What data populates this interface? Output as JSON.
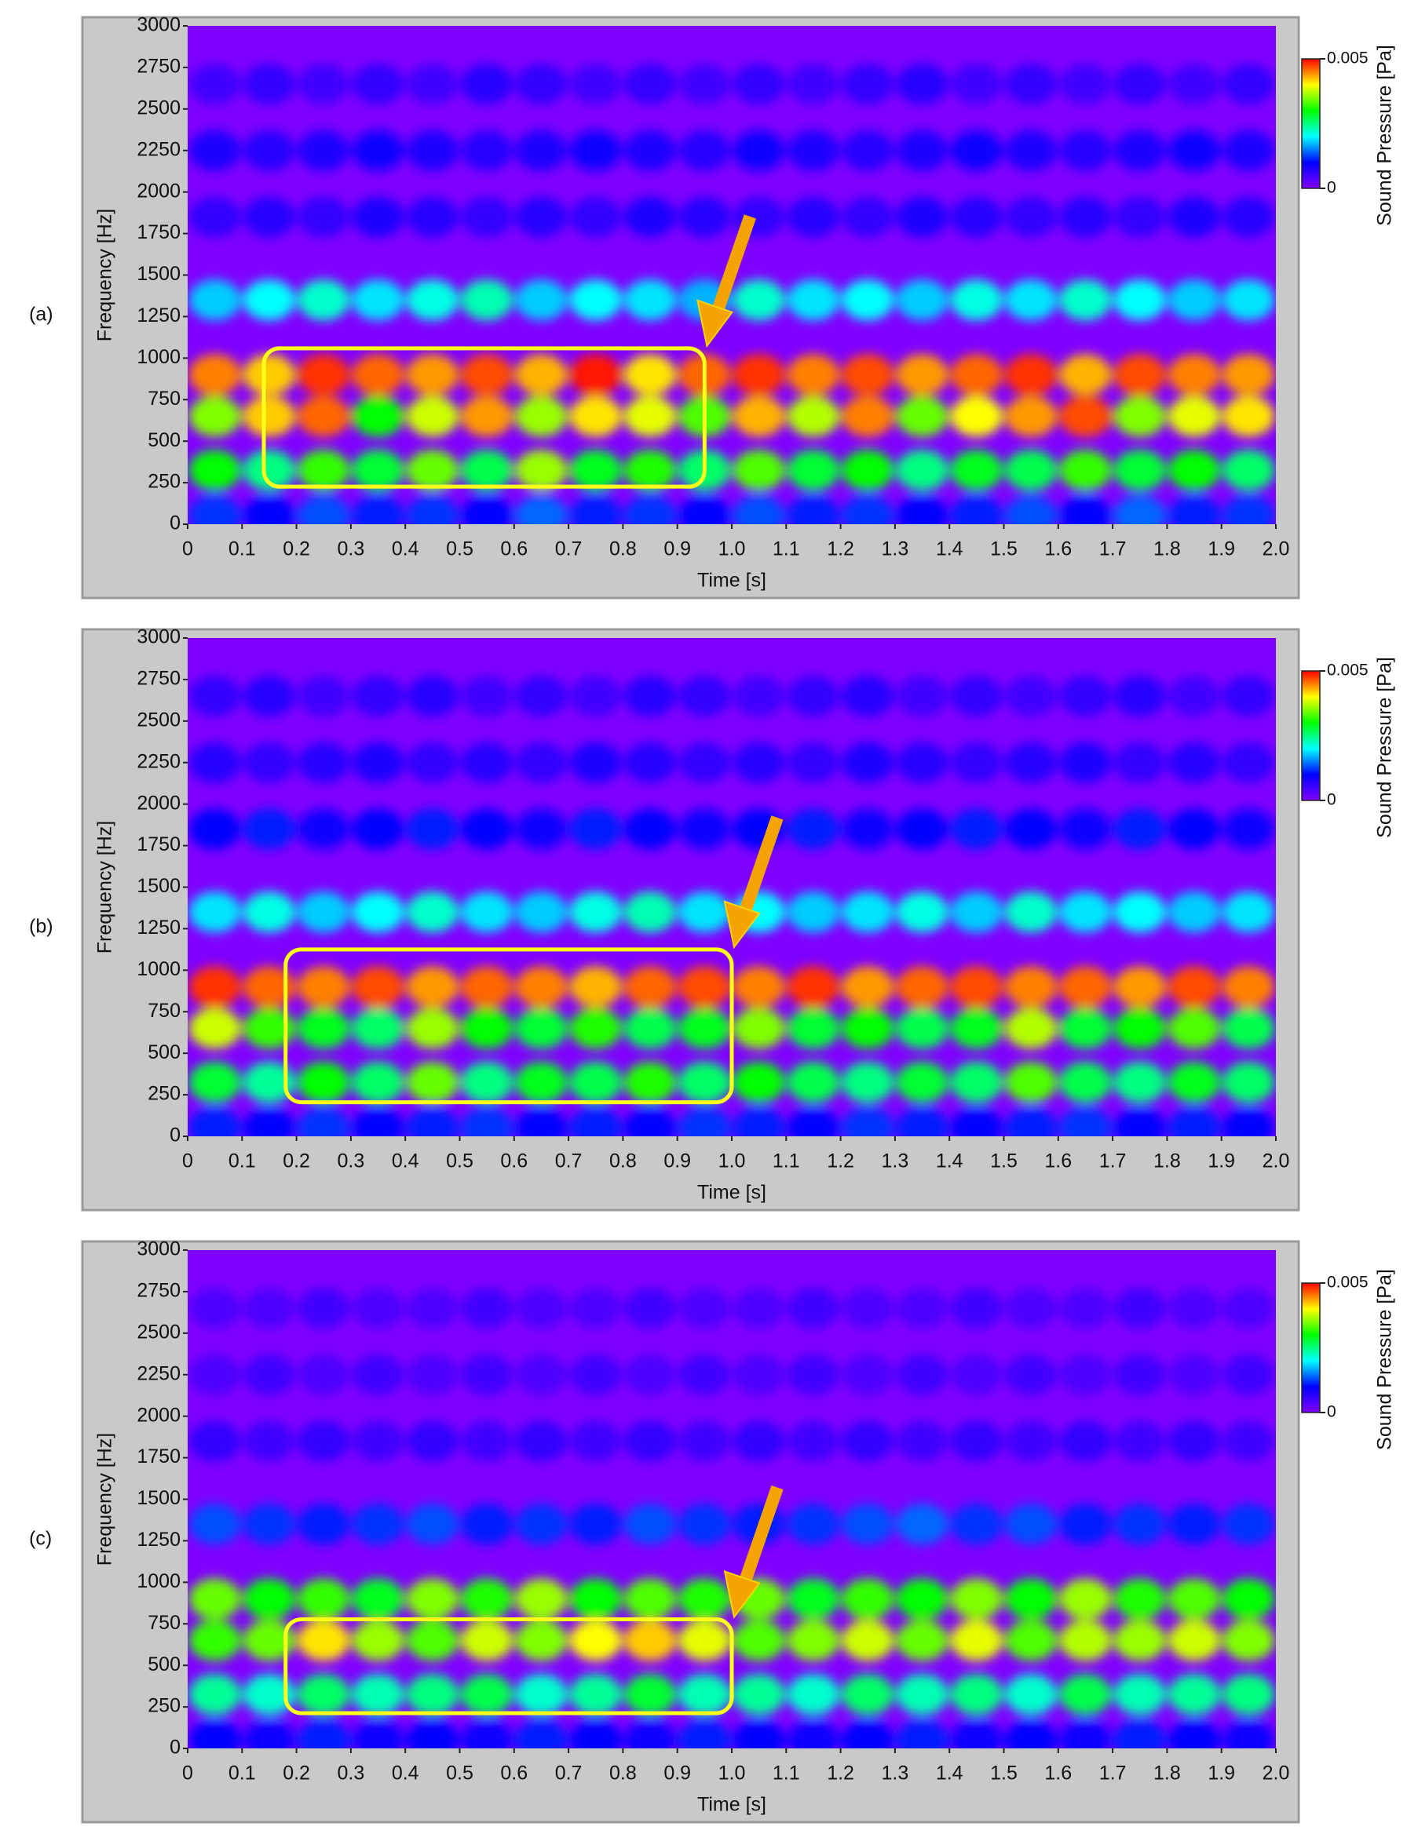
{
  "chart_data": [
    {
      "type": "heatmap",
      "label": "(a)",
      "xlabel": "Time [s]",
      "ylabel": "Frequency [Hz]",
      "x": [
        0.05,
        0.15,
        0.25,
        0.35,
        0.45,
        0.55,
        0.65,
        0.75,
        0.85,
        0.95,
        1.05,
        1.15,
        1.25,
        1.35,
        1.45,
        1.55,
        1.65,
        1.75,
        1.85,
        1.95
      ],
      "y": [
        50,
        325,
        650,
        900,
        1350,
        1850,
        2250,
        2650
      ],
      "values": [
        [
          0.0012,
          0.001,
          0.0013,
          0.0011,
          0.0012,
          0.001,
          0.0014,
          0.0011,
          0.0012,
          0.001,
          0.0013,
          0.0011,
          0.0012,
          0.001,
          0.0011,
          0.0013,
          0.001,
          0.0014,
          0.0011,
          0.0012
        ],
        [
          0.003,
          0.0025,
          0.0032,
          0.0028,
          0.0034,
          0.0027,
          0.0036,
          0.0029,
          0.0031,
          0.0026,
          0.0033,
          0.0028,
          0.003,
          0.0025,
          0.0029,
          0.0027,
          0.0032,
          0.0028,
          0.003,
          0.0026
        ],
        [
          0.0035,
          0.0042,
          0.0046,
          0.003,
          0.0038,
          0.0044,
          0.0036,
          0.0041,
          0.0039,
          0.0033,
          0.0043,
          0.0037,
          0.0045,
          0.0034,
          0.004,
          0.0044,
          0.0047,
          0.0035,
          0.0039,
          0.0041
        ],
        [
          0.0045,
          0.0042,
          0.0048,
          0.0046,
          0.0044,
          0.0047,
          0.0043,
          0.0049,
          0.0041,
          0.0046,
          0.0048,
          0.0045,
          0.0047,
          0.0044,
          0.0046,
          0.0048,
          0.0043,
          0.0047,
          0.0045,
          0.0044
        ],
        [
          0.0018,
          0.002,
          0.0022,
          0.0019,
          0.0021,
          0.0023,
          0.0018,
          0.002,
          0.0019,
          0.0017,
          0.0022,
          0.0019,
          0.002,
          0.0018,
          0.0021,
          0.0019,
          0.0022,
          0.002,
          0.0018,
          0.0019
        ],
        [
          0.0006,
          0.0007,
          0.0006,
          0.0008,
          0.0007,
          0.0006,
          0.0007,
          0.0006,
          0.0008,
          0.0007,
          0.0006,
          0.0007,
          0.0006,
          0.0008,
          0.0007,
          0.0006,
          0.0007,
          0.0006,
          0.0008,
          0.0007
        ],
        [
          0.0008,
          0.0007,
          0.0008,
          0.0009,
          0.0008,
          0.0007,
          0.0008,
          0.0009,
          0.0008,
          0.0007,
          0.0009,
          0.0008,
          0.0007,
          0.0008,
          0.0009,
          0.0008,
          0.0007,
          0.0008,
          0.0009,
          0.0008
        ],
        [
          0.0005,
          0.0006,
          0.0005,
          0.0006,
          0.0005,
          0.0007,
          0.0006,
          0.0005,
          0.0006,
          0.0005,
          0.0006,
          0.0005,
          0.0006,
          0.0007,
          0.0005,
          0.0006,
          0.0005,
          0.0006,
          0.0005,
          0.0006
        ]
      ],
      "xlim": [
        0,
        2
      ],
      "ylim": [
        0,
        3000
      ],
      "xticks": [
        0,
        0.1,
        0.2,
        0.3,
        0.4,
        0.5,
        0.6,
        0.7,
        0.8,
        0.9,
        {
          "value": 1,
          "label": "1.0"
        },
        1.1,
        1.2,
        1.3,
        1.4,
        1.5,
        1.6,
        1.7,
        1.8,
        1.9,
        {
          "value": 2,
          "label": "2.0"
        }
      ],
      "yticks": [
        0,
        250,
        500,
        750,
        1000,
        1250,
        1500,
        1750,
        2000,
        2250,
        2500,
        2750,
        3000
      ],
      "colormap": [
        "#8000ff",
        "#0000ff",
        "#00ffff",
        "#00ff00",
        "#ffff00",
        "#ff0000"
      ],
      "colorbar": {
        "label": "Sound Pressure [Pa]",
        "lim": [
          0,
          0.005
        ],
        "ticks": [
          0,
          0.005
        ]
      },
      "highlight": {
        "x": [
          0.14,
          0.95
        ],
        "y": [
          226,
          1059
        ]
      }
    },
    {
      "type": "heatmap",
      "label": "(b)",
      "xlabel": "Time [s]",
      "ylabel": "Frequency [Hz]",
      "x": [
        0.05,
        0.15,
        0.25,
        0.35,
        0.45,
        0.55,
        0.65,
        0.75,
        0.85,
        0.95,
        1.05,
        1.15,
        1.25,
        1.35,
        1.45,
        1.55,
        1.65,
        1.75,
        1.85,
        1.95
      ],
      "y": [
        50,
        325,
        650,
        900,
        1350,
        1850,
        2250,
        2650
      ],
      "values": [
        [
          0.0011,
          0.001,
          0.0012,
          0.001,
          0.0011,
          0.0012,
          0.001,
          0.0011,
          0.001,
          0.0012,
          0.0011,
          0.001,
          0.0012,
          0.0011,
          0.001,
          0.0011,
          0.0012,
          0.001,
          0.0011,
          0.001
        ],
        [
          0.0028,
          0.0024,
          0.003,
          0.0026,
          0.0034,
          0.0025,
          0.0029,
          0.0027,
          0.0031,
          0.0026,
          0.003,
          0.0027,
          0.0025,
          0.0028,
          0.0026,
          0.0033,
          0.0027,
          0.0025,
          0.0029,
          0.0026
        ],
        [
          0.0038,
          0.0032,
          0.0029,
          0.0026,
          0.0036,
          0.003,
          0.0028,
          0.0031,
          0.0027,
          0.0029,
          0.0035,
          0.0028,
          0.003,
          0.0027,
          0.0029,
          0.0037,
          0.0028,
          0.003,
          0.0033,
          0.0027
        ],
        [
          0.0048,
          0.0046,
          0.0045,
          0.0047,
          0.0044,
          0.0046,
          0.0045,
          0.0043,
          0.0046,
          0.0047,
          0.0045,
          0.0048,
          0.0044,
          0.0046,
          0.0047,
          0.0045,
          0.0046,
          0.0044,
          0.0047,
          0.0045
        ],
        [
          0.0019,
          0.0021,
          0.0018,
          0.002,
          0.0022,
          0.0019,
          0.0018,
          0.0021,
          0.0023,
          0.0019,
          0.002,
          0.0018,
          0.0019,
          0.0021,
          0.0018,
          0.0022,
          0.0019,
          0.002,
          0.0018,
          0.0019
        ],
        [
          0.001,
          0.0011,
          0.0009,
          0.001,
          0.0011,
          0.001,
          0.0009,
          0.0011,
          0.001,
          0.0009,
          0.001,
          0.0011,
          0.0009,
          0.001,
          0.0011,
          0.001,
          0.0009,
          0.0011,
          0.001,
          0.0009
        ],
        [
          0.0007,
          0.0006,
          0.0007,
          0.0008,
          0.0006,
          0.0007,
          0.0006,
          0.0008,
          0.0007,
          0.0006,
          0.0007,
          0.0006,
          0.0008,
          0.0007,
          0.0006,
          0.0007,
          0.0008,
          0.0006,
          0.0007,
          0.0006
        ],
        [
          0.0006,
          0.0007,
          0.0005,
          0.0006,
          0.0007,
          0.0005,
          0.0006,
          0.0005,
          0.0007,
          0.0006,
          0.0005,
          0.0006,
          0.0007,
          0.0005,
          0.0006,
          0.0005,
          0.0006,
          0.0007,
          0.0005,
          0.0006
        ]
      ],
      "xlim": [
        0,
        2
      ],
      "ylim": [
        0,
        3000
      ],
      "xticks": [
        0,
        0.1,
        0.2,
        0.3,
        0.4,
        0.5,
        0.6,
        0.7,
        0.8,
        0.9,
        {
          "value": 1,
          "label": "1.0"
        },
        1.1,
        1.2,
        1.3,
        1.4,
        1.5,
        1.6,
        1.7,
        1.8,
        1.9,
        {
          "value": 2,
          "label": "2.0"
        }
      ],
      "yticks": [
        0,
        250,
        500,
        750,
        1000,
        1250,
        1500,
        1750,
        2000,
        2250,
        2500,
        2750,
        3000
      ],
      "colormap": [
        "#8000ff",
        "#0000ff",
        "#00ffff",
        "#00ff00",
        "#ffff00",
        "#ff0000"
      ],
      "colorbar": {
        "label": "Sound Pressure [Pa]",
        "lim": [
          0,
          0.005
        ],
        "ticks": [
          0,
          0.005
        ]
      },
      "highlight": {
        "x": [
          0.18,
          1.0
        ],
        "y": [
          205,
          1125
        ]
      }
    },
    {
      "type": "heatmap",
      "label": "(c)",
      "xlabel": "Time [s]",
      "ylabel": "Frequency [Hz]",
      "x": [
        0.05,
        0.15,
        0.25,
        0.35,
        0.45,
        0.55,
        0.65,
        0.75,
        0.85,
        0.95,
        1.05,
        1.15,
        1.25,
        1.35,
        1.45,
        1.55,
        1.65,
        1.75,
        1.85,
        1.95
      ],
      "y": [
        50,
        325,
        650,
        900,
        1350,
        1850,
        2250,
        2650
      ],
      "values": [
        [
          0.001,
          0.0009,
          0.0011,
          0.0009,
          0.001,
          0.0009,
          0.0011,
          0.001,
          0.0009,
          0.0011,
          0.001,
          0.0009,
          0.001,
          0.0011,
          0.0009,
          0.001,
          0.0009,
          0.0011,
          0.001,
          0.0009
        ],
        [
          0.0024,
          0.0022,
          0.0026,
          0.0023,
          0.0025,
          0.0027,
          0.0022,
          0.0024,
          0.0028,
          0.0023,
          0.0024,
          0.0022,
          0.0026,
          0.0023,
          0.0025,
          0.0022,
          0.0027,
          0.0023,
          0.0024,
          0.0025
        ],
        [
          0.0032,
          0.0034,
          0.0041,
          0.0036,
          0.0033,
          0.0038,
          0.0035,
          0.004,
          0.0042,
          0.0039,
          0.0033,
          0.0035,
          0.0038,
          0.0034,
          0.0039,
          0.0033,
          0.0037,
          0.0036,
          0.0038,
          0.0035
        ],
        [
          0.0034,
          0.003,
          0.0032,
          0.0029,
          0.0035,
          0.0031,
          0.0036,
          0.003,
          0.0033,
          0.0031,
          0.0034,
          0.0029,
          0.0032,
          0.003,
          0.0035,
          0.003,
          0.0036,
          0.0031,
          0.0033,
          0.003
        ],
        [
          0.0013,
          0.0012,
          0.0011,
          0.0012,
          0.0013,
          0.0011,
          0.0012,
          0.0011,
          0.0013,
          0.0012,
          0.0011,
          0.0012,
          0.0013,
          0.0014,
          0.0012,
          0.0013,
          0.0011,
          0.0012,
          0.0011,
          0.0012
        ],
        [
          0.0006,
          0.0005,
          0.0006,
          0.0005,
          0.0006,
          0.0005,
          0.0006,
          0.0005,
          0.0006,
          0.0005,
          0.0006,
          0.0005,
          0.0006,
          0.0005,
          0.0006,
          0.0005,
          0.0006,
          0.0005,
          0.0006,
          0.0005
        ],
        [
          0.0004,
          0.0005,
          0.0004,
          0.0005,
          0.0004,
          0.0005,
          0.0004,
          0.0005,
          0.0004,
          0.0005,
          0.0004,
          0.0005,
          0.0004,
          0.0005,
          0.0004,
          0.0005,
          0.0004,
          0.0005,
          0.0004,
          0.0005
        ],
        [
          0.0004,
          0.0004,
          0.0005,
          0.0004,
          0.0004,
          0.0005,
          0.0004,
          0.0004,
          0.0005,
          0.0004,
          0.0004,
          0.0005,
          0.0004,
          0.0004,
          0.0005,
          0.0004,
          0.0004,
          0.0005,
          0.0004,
          0.0004
        ]
      ],
      "xlim": [
        0,
        2
      ],
      "ylim": [
        0,
        3000
      ],
      "xticks": [
        0,
        0.1,
        0.2,
        0.3,
        0.4,
        0.5,
        0.6,
        0.7,
        0.8,
        0.9,
        {
          "value": 1,
          "label": "1.0"
        },
        1.1,
        1.2,
        1.3,
        1.4,
        1.5,
        1.6,
        1.7,
        1.8,
        1.9,
        {
          "value": 2,
          "label": "2.0"
        }
      ],
      "yticks": [
        0,
        250,
        500,
        750,
        1000,
        1250,
        1500,
        1750,
        2000,
        2250,
        2500,
        2750,
        3000
      ],
      "colormap": [
        "#8000ff",
        "#0000ff",
        "#00ffff",
        "#00ff00",
        "#ffff00",
        "#ff0000"
      ],
      "colorbar": {
        "label": "Sound Pressure [Pa]",
        "lim": [
          0,
          0.005
        ],
        "ticks": [
          0,
          0.005
        ]
      },
      "highlight": {
        "x": [
          0.18,
          1.0
        ],
        "y": [
          212,
          777
        ]
      }
    }
  ]
}
